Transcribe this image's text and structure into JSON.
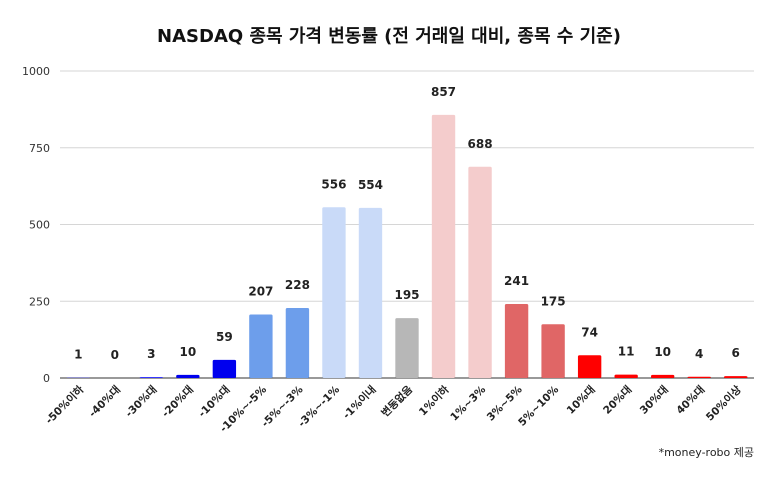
{
  "chart_data": {
    "type": "bar",
    "title": "NASDAQ 종목 가격 변동률 (전 거래일 대비, 종목 수 기준)",
    "categories": [
      "-50%이하",
      "-40%대",
      "-30%대",
      "-20%대",
      "-10%대",
      "-10%~-5%",
      "-5%~-3%",
      "-3%~-1%",
      "-1%이내",
      "변동없음",
      "1%이하",
      "1%~3%",
      "3%~5%",
      "5%~10%",
      "10%대",
      "20%대",
      "30%대",
      "40%대",
      "50%이상"
    ],
    "values": [
      1,
      0,
      3,
      10,
      59,
      207,
      228,
      556,
      554,
      195,
      857,
      688,
      241,
      175,
      74,
      11,
      10,
      4,
      6
    ],
    "colors": [
      "#1a1aff",
      "#1a1aff",
      "#1a1aff",
      "#0000ee",
      "#0000ee",
      "#6d9eeb",
      "#6d9eeb",
      "#c9daf8",
      "#c9daf8",
      "#b7b7b7",
      "#f4cccc",
      "#f4cccc",
      "#e06666",
      "#e06666",
      "#ff0000",
      "#ff0000",
      "#ff0000",
      "#ff0000",
      "#ff0000"
    ],
    "ylim": [
      0,
      1000
    ],
    "yticks": [
      0,
      250,
      500,
      750,
      1000
    ],
    "xlabel": "",
    "ylabel": "",
    "grid": true,
    "note": "*money-robo 제공"
  }
}
